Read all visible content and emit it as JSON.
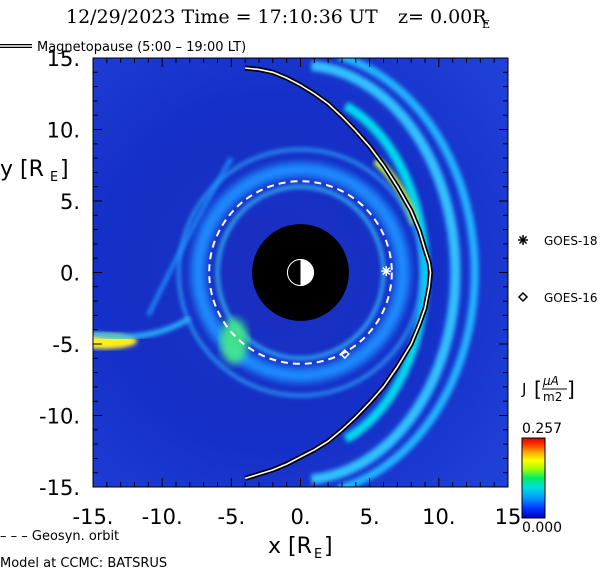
{
  "header": {
    "title_main": "12/29/2023 Time = 17:10:36 UT",
    "title_z": "z= 0.00R",
    "title_z_sub": "E"
  },
  "legend": {
    "magnetopause_label": "Magnetopause (5:00 – 19:00 LT)",
    "geosyn_label": "– – – Geosyn. orbit"
  },
  "footer": {
    "model_label": "Model at CCMC: BATSRUS"
  },
  "axes": {
    "x_label": "x [R",
    "x_label_sub": "E",
    "x_label_end": "]",
    "y_label": "y [R",
    "y_label_sub": "E",
    "y_label_end": "]"
  },
  "colorbar": {
    "label": "J",
    "unit_num": "μA",
    "unit_den": "m2",
    "max_label": "0.257",
    "min_label": "0.000",
    "stops": [
      "#0000c8",
      "#0033ff",
      "#0099ff",
      "#00dddd",
      "#00ee66",
      "#aaff00",
      "#ffff00",
      "#ffaa00",
      "#ff3300",
      "#dd0000"
    ]
  },
  "satellites": [
    {
      "name": "GOES-18",
      "marker": "asterisk",
      "x": 6.2,
      "y": 0.1
    },
    {
      "name": "GOES-16",
      "marker": "diamond",
      "x": 3.2,
      "y": -5.7
    }
  ],
  "chart_data": {
    "type": "heatmap",
    "title": "12/29/2023 Time = 17:10:36 UT z= 0.00RE",
    "xlabel": "x [RE]",
    "ylabel": "y [RE]",
    "xlim": [
      -15,
      15
    ],
    "ylim": [
      -15,
      15
    ],
    "x_tick_labels": [
      "-15.",
      "-10.",
      "-5.",
      "0.",
      "5.",
      "10.",
      "15"
    ],
    "y_tick_labels": [
      "15.",
      "10.",
      "5.",
      "0.",
      "-5.",
      "-10.",
      "-15."
    ],
    "x_ticks": [
      -15,
      -10,
      -5,
      0,
      5,
      10,
      15
    ],
    "y_ticks": [
      15,
      10,
      5,
      0,
      -5,
      -10,
      -15
    ],
    "quantity": "J",
    "colorbar_range": [
      0,
      0.257
    ],
    "earth_inner_boundary_radius": 3.5,
    "geosynchronous_orbit_radius": 6.6,
    "magnetopause": {
      "subsolar_distance": 9.4,
      "x": [
        -4,
        -3,
        -2,
        -1,
        0,
        1,
        2,
        3,
        4,
        5,
        6,
        7,
        8,
        8.6,
        9.0,
        9.3,
        9.4,
        9.3,
        9.0,
        8.6,
        8.0,
        7.0,
        6.0,
        5.0,
        4.0,
        3.0,
        2.0,
        1.0,
        0,
        -1,
        -2,
        -3,
        -4
      ],
      "y": [
        14.3,
        14.2,
        14.0,
        13.6,
        13.1,
        12.5,
        11.8,
        10.9,
        9.9,
        8.8,
        7.5,
        6.0,
        4.3,
        2.9,
        1.6,
        0.7,
        0,
        -1.0,
        -2.5,
        -3.6,
        -5.0,
        -6.6,
        -8.0,
        -9.1,
        -10.1,
        -11.0,
        -11.8,
        -12.4,
        -12.9,
        -13.4,
        -13.8,
        -14.1,
        -14.4
      ]
    },
    "current_features": [
      {
        "description_value": "bow shock arc",
        "peak_x": 11.5,
        "peak_y": 0
      },
      {
        "description_value": "tail jet",
        "peak_x": -14,
        "peak_y": -4.8
      }
    ]
  }
}
